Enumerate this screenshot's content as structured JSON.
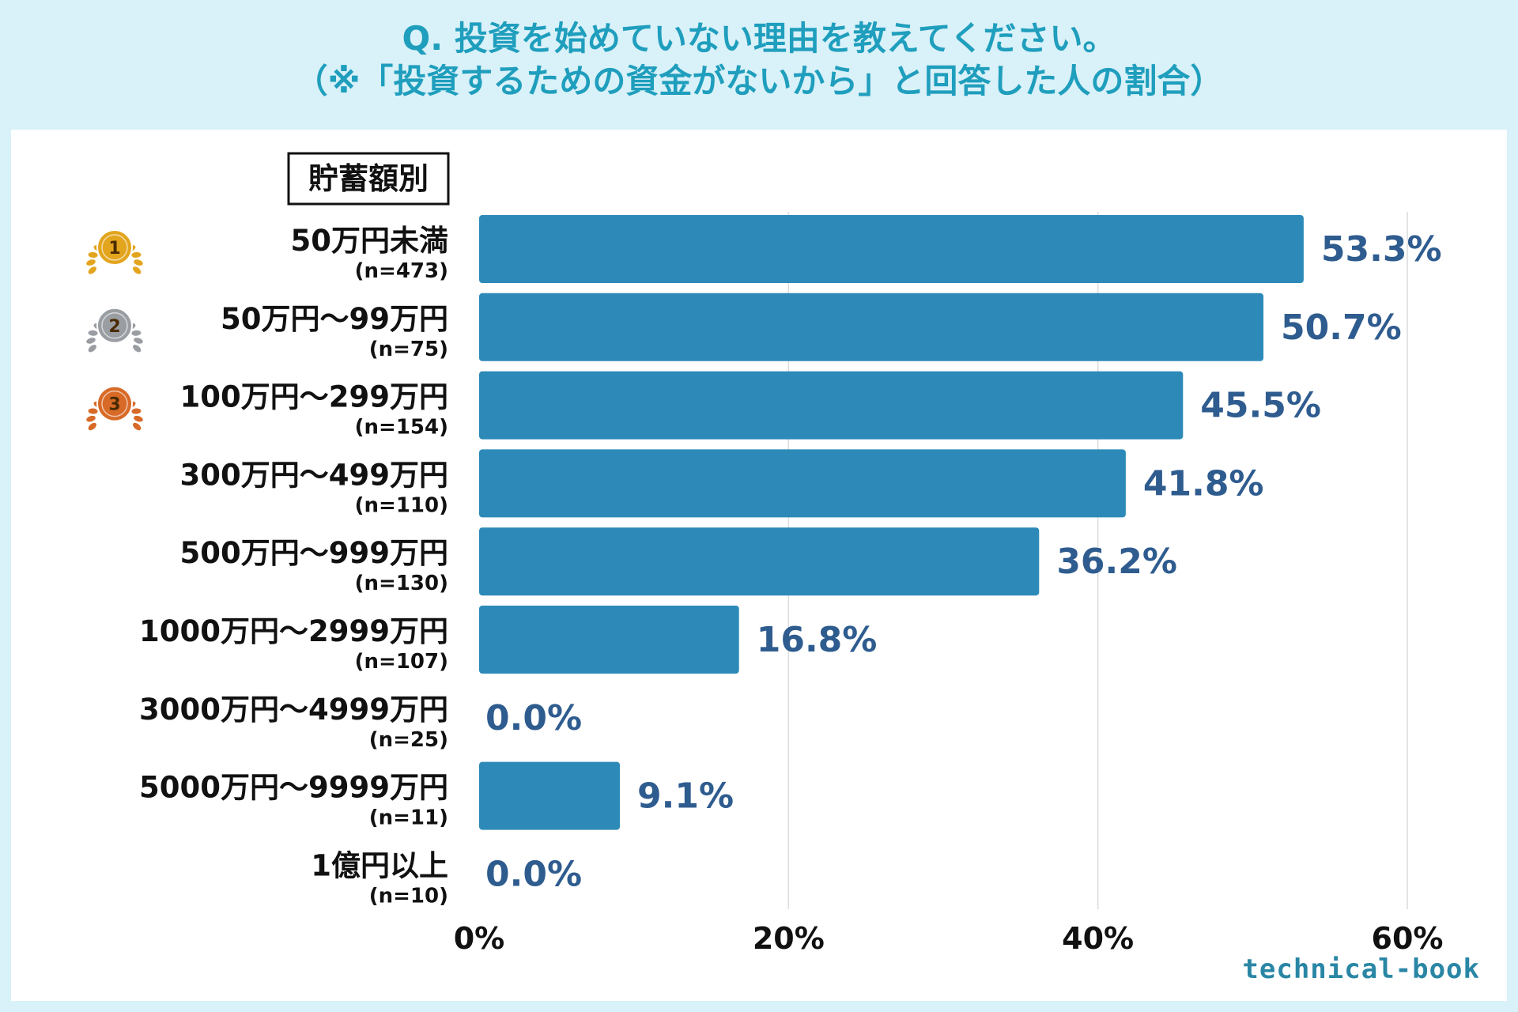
{
  "title": {
    "line1": "Q. 投資を始めていない理由を教えてください。",
    "line2": "（※「投資するための資金がないから」と回答した人の割合）"
  },
  "legend_box": "貯蓄額別",
  "brand": "technical-book",
  "colors": {
    "bar": "#2d8ab8",
    "value_text": "#2f5c8f",
    "title": "#1f9ebd",
    "background": "#d9f1f8"
  },
  "chart_data": {
    "type": "bar",
    "orientation": "horizontal",
    "title": "Q. 投資を始めていない理由を教えてください。（※「投資するための資金がないから」と回答した人の割合）",
    "categories": [
      "50万円未満",
      "50万円～99万円",
      "100万円～299万円",
      "300万円～499万円",
      "500万円～999万円",
      "1000万円～2999万円",
      "3000万円～4999万円",
      "5000万円～9999万円",
      "1億円以上"
    ],
    "sample_sizes": [
      "(n=473)",
      "(n=75)",
      "(n=154)",
      "(n=110)",
      "(n=130)",
      "(n=107)",
      "(n=25)",
      "(n=11)",
      "(n=10)"
    ],
    "values": [
      53.3,
      50.7,
      45.5,
      41.8,
      36.2,
      16.8,
      0.0,
      9.1,
      0.0
    ],
    "value_labels": [
      "53.3%",
      "50.7%",
      "45.5%",
      "41.8%",
      "36.2%",
      "16.8%",
      "0.0%",
      "9.1%",
      "0.0%"
    ],
    "ranks": [
      {
        "index": 0,
        "label": "1",
        "medal": "gold-medal-icon",
        "color": "#e3a51e"
      },
      {
        "index": 1,
        "label": "2",
        "medal": "silver-medal-icon",
        "color": "#9a9ea3"
      },
      {
        "index": 2,
        "label": "3",
        "medal": "bronze-medal-icon",
        "color": "#d86a27"
      }
    ],
    "xlim": [
      0,
      60
    ],
    "xticks": [
      0,
      20,
      40,
      60
    ],
    "xtick_labels": [
      "0%",
      "20%",
      "40%",
      "60%"
    ],
    "grid": true,
    "unit": "%"
  }
}
